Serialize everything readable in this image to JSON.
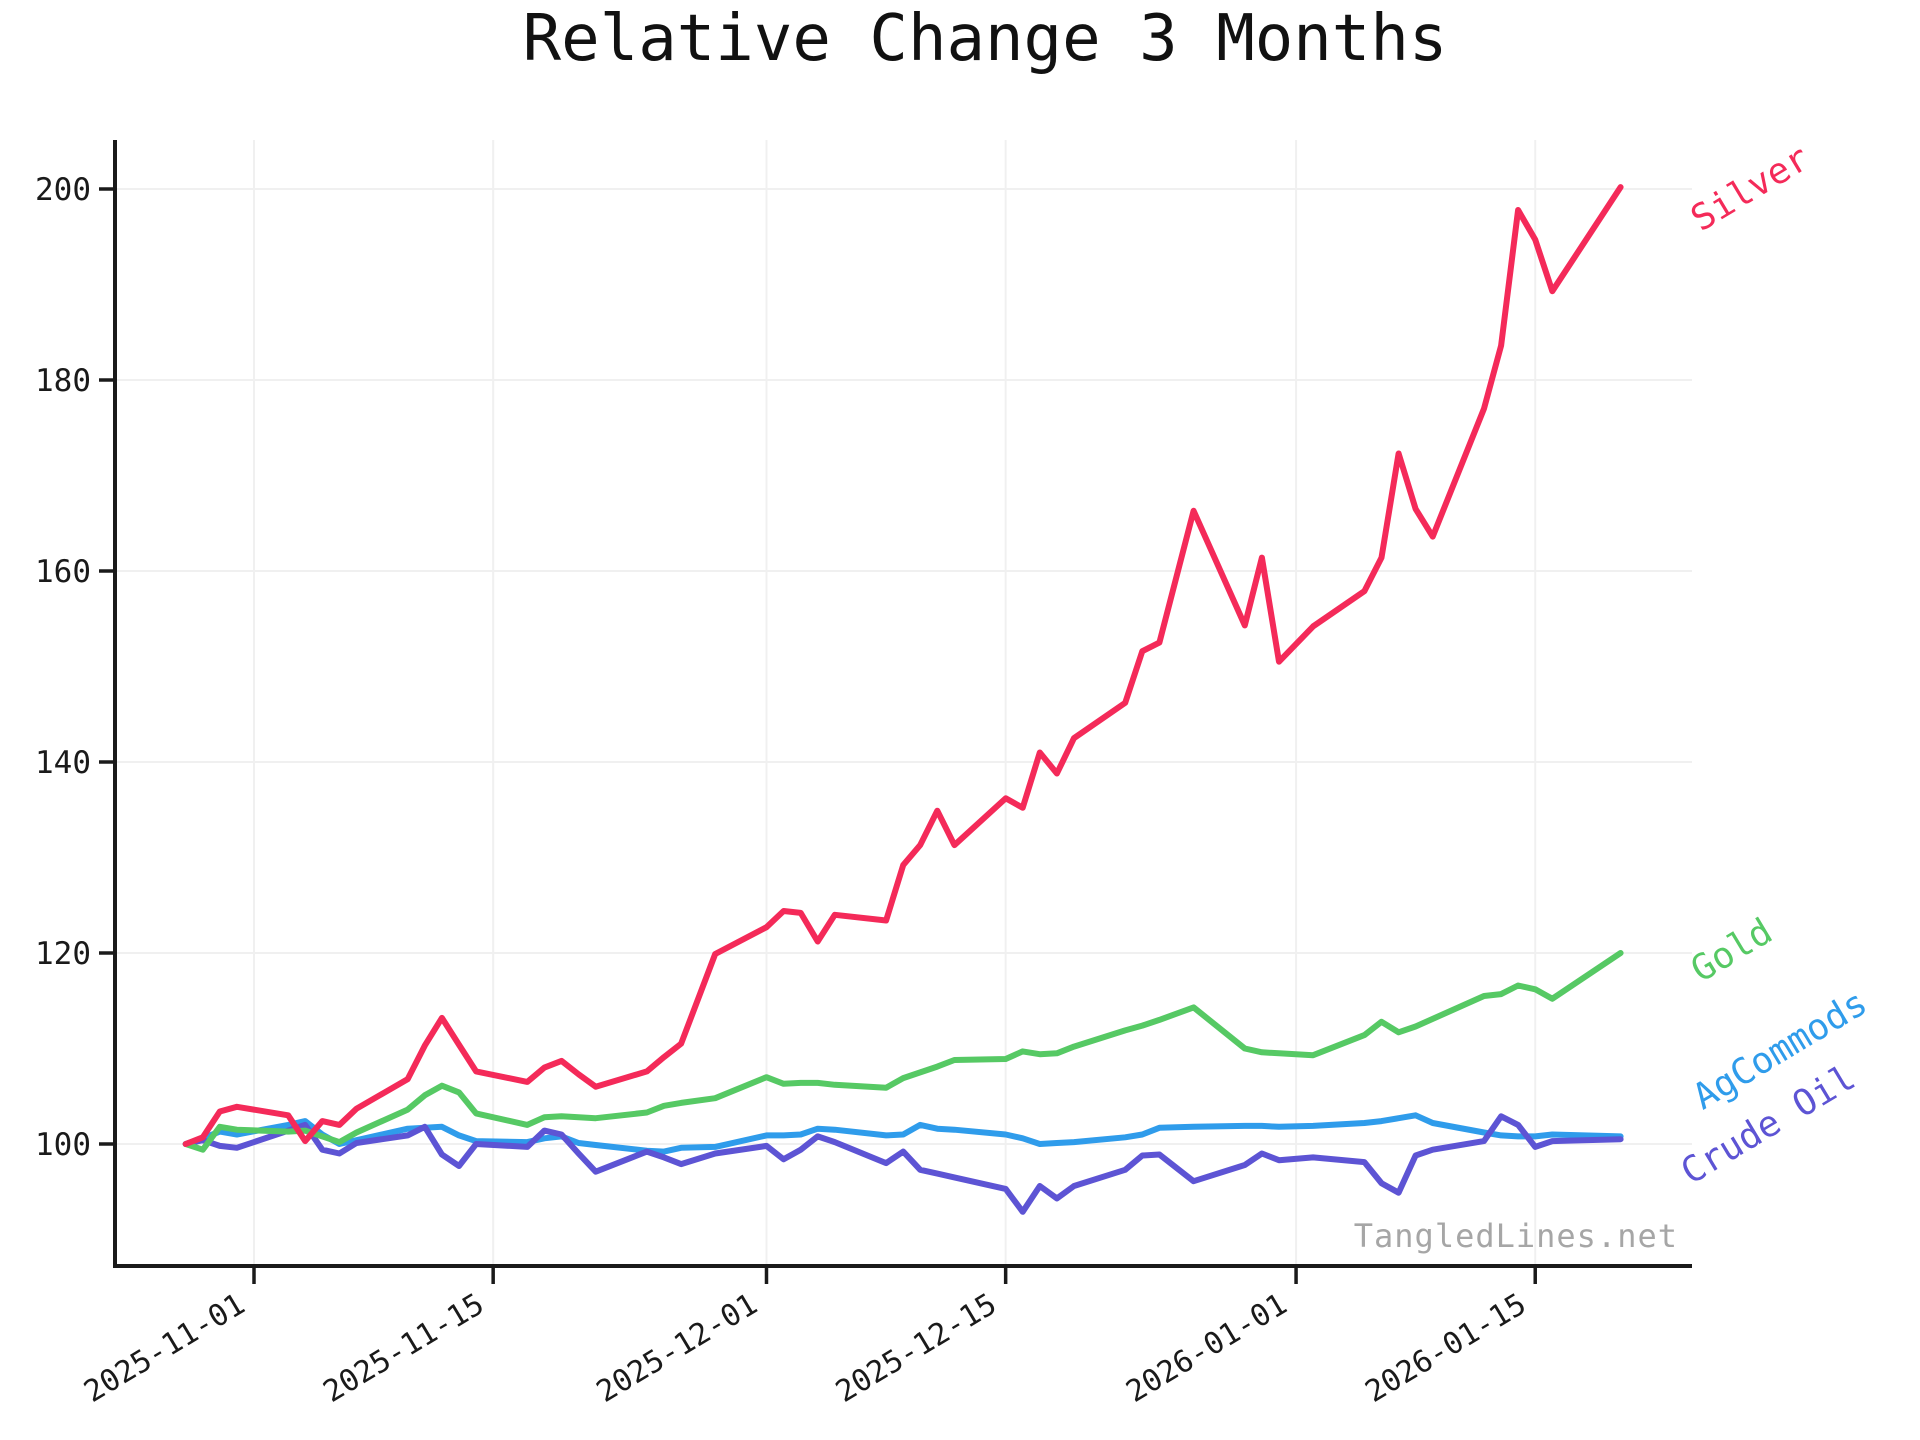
{
  "page": {
    "background": "#ffffff"
  },
  "chart_data": {
    "type": "line",
    "title": "Relative Change 3 Months",
    "watermark": "TangledLines.net",
    "xlabel": "",
    "ylabel": "",
    "grid": true,
    "legend_position": "inline-end-labels",
    "ylim": [
      87.2,
      205.3
    ],
    "xlim_dates": [
      "2025-10-24",
      "2026-01-24"
    ],
    "colors": {
      "axis": "#1a1a1a",
      "tick_text": "#1a1a1a",
      "grid": "#f0f0f0",
      "watermark": "#a6a6a6",
      "background": "#ffffff"
    },
    "y_axis": {
      "ticks": [
        100,
        120,
        140,
        160,
        180,
        200
      ]
    },
    "x_axis": {
      "tick_dates": [
        "2025-11-01",
        "2025-11-15",
        "2025-12-01",
        "2025-12-15",
        "2026-01-01",
        "2026-01-15"
      ],
      "tick_labels": [
        "2025-11-01",
        "2025-11-15",
        "2025-12-01",
        "2025-12-15",
        "2026-01-01",
        "2026-01-15"
      ],
      "label_rotation_deg": -31
    },
    "label_angle_deg": -31,
    "dates": [
      "2025-10-28",
      "2025-10-29",
      "2025-10-30",
      "2025-10-31",
      "2025-11-03",
      "2025-11-04",
      "2025-11-05",
      "2025-11-06",
      "2025-11-07",
      "2025-11-10",
      "2025-11-11",
      "2025-11-12",
      "2025-11-13",
      "2025-11-14",
      "2025-11-17",
      "2025-11-18",
      "2025-11-19",
      "2025-11-20",
      "2025-11-21",
      "2025-11-24",
      "2025-11-25",
      "2025-11-26",
      "2025-11-28",
      "2025-12-01",
      "2025-12-02",
      "2025-12-03",
      "2025-12-04",
      "2025-12-05",
      "2025-12-08",
      "2025-12-09",
      "2025-12-10",
      "2025-12-11",
      "2025-12-12",
      "2025-12-15",
      "2025-12-16",
      "2025-12-17",
      "2025-12-18",
      "2025-12-19",
      "2025-12-22",
      "2025-12-23",
      "2025-12-24",
      "2025-12-26",
      "2025-12-29",
      "2025-12-30",
      "2025-12-31",
      "2026-01-02",
      "2026-01-05",
      "2026-01-06",
      "2026-01-07",
      "2026-01-08",
      "2026-01-09",
      "2026-01-12",
      "2026-01-13",
      "2026-01-14",
      "2026-01-15",
      "2026-01-16",
      "2026-01-20"
    ],
    "series": [
      {
        "name": "AgCommods",
        "color": "#2f9ceb",
        "label_dx": 82,
        "label_dy": -26,
        "values": [
          100.0,
          100.6,
          101.3,
          101.0,
          102.0,
          102.4,
          101.0,
          100.0,
          100.4,
          101.6,
          101.7,
          101.8,
          100.9,
          100.3,
          100.2,
          100.6,
          100.8,
          100.1,
          99.9,
          99.3,
          99.2,
          99.6,
          99.7,
          100.9,
          100.9,
          101.0,
          101.6,
          101.5,
          100.9,
          101.0,
          102.0,
          101.6,
          101.5,
          101.0,
          100.6,
          100.0,
          100.1,
          100.2,
          100.7,
          101.0,
          101.7,
          101.8,
          101.9,
          101.9,
          101.8,
          101.9,
          102.2,
          102.4,
          102.7,
          103.0,
          102.2,
          101.2,
          100.9,
          100.8,
          100.8,
          101.0,
          100.8
        ]
      },
      {
        "name": "Crude Oil",
        "color": "#5d54d4",
        "label_dx": 70,
        "label_dy": 46,
        "values": [
          100.0,
          100.4,
          99.8,
          99.6,
          101.4,
          102.0,
          99.4,
          99.0,
          100.1,
          100.9,
          101.8,
          98.9,
          97.7,
          100.0,
          99.7,
          101.4,
          101.0,
          99.0,
          97.1,
          99.2,
          98.6,
          97.9,
          99.0,
          99.8,
          98.4,
          99.4,
          100.8,
          100.2,
          98.0,
          99.2,
          97.3,
          96.9,
          96.5,
          95.3,
          92.9,
          95.6,
          94.3,
          95.6,
          97.3,
          98.8,
          98.9,
          96.1,
          97.8,
          99.0,
          98.3,
          98.6,
          98.1,
          95.9,
          94.9,
          98.8,
          99.4,
          100.3,
          102.9,
          102.0,
          99.7,
          100.3,
          100.5
        ]
      },
      {
        "name": "Gold",
        "color": "#56c964",
        "label_dx": 80,
        "label_dy": 30,
        "values": [
          100.0,
          99.4,
          101.8,
          101.5,
          101.3,
          101.4,
          100.8,
          100.2,
          101.2,
          103.6,
          105.1,
          106.1,
          105.4,
          103.2,
          102.0,
          102.8,
          102.9,
          102.8,
          102.7,
          103.3,
          104.0,
          104.3,
          104.8,
          107.0,
          106.3,
          106.4,
          106.4,
          106.2,
          105.9,
          106.9,
          107.5,
          108.1,
          108.8,
          108.9,
          109.7,
          109.4,
          109.5,
          110.2,
          111.9,
          112.4,
          113.0,
          114.3,
          110.0,
          109.6,
          109.5,
          109.3,
          111.4,
          112.8,
          111.7,
          112.3,
          113.1,
          115.5,
          115.7,
          116.6,
          116.2,
          115.2,
          120.0
        ]
      },
      {
        "name": "Silver",
        "color": "#f42a59",
        "label_dx": 80,
        "label_dy": 45,
        "values": [
          100.0,
          100.7,
          103.4,
          103.9,
          103.0,
          100.3,
          102.4,
          102.0,
          103.7,
          106.8,
          110.3,
          113.2,
          110.4,
          107.6,
          106.5,
          108.0,
          108.7,
          107.3,
          106.0,
          107.6,
          109.1,
          110.5,
          119.9,
          122.7,
          124.4,
          124.2,
          121.2,
          124.0,
          123.4,
          129.2,
          131.3,
          134.9,
          131.3,
          136.2,
          135.2,
          141.0,
          138.8,
          142.5,
          146.2,
          151.6,
          152.5,
          166.3,
          154.3,
          161.4,
          150.5,
          154.2,
          157.9,
          161.4,
          172.3,
          166.5,
          163.6,
          177.0,
          183.6,
          197.8,
          194.7,
          189.3,
          200.2
        ]
      }
    ]
  }
}
